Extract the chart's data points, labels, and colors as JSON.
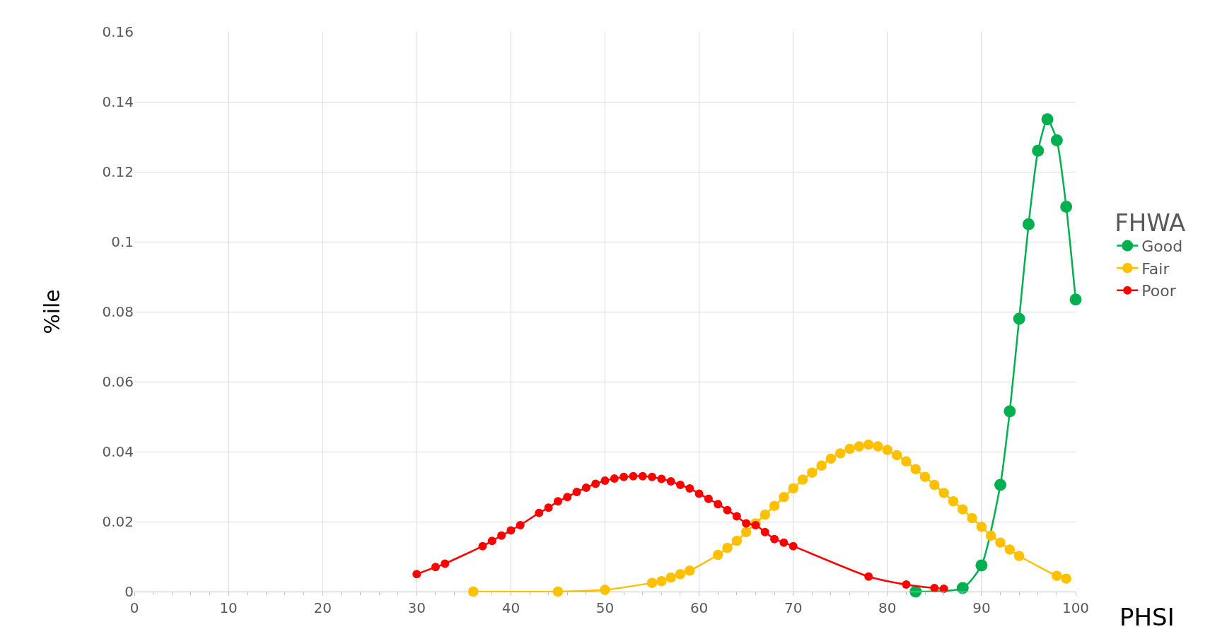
{
  "chart_data": {
    "type": "line",
    "xlabel": "PHSI",
    "ylabel": "%ile",
    "legend_title": "FHWA",
    "legend": "right",
    "grid": true,
    "marker": "circle",
    "line_style": "solid",
    "xlim": [
      0,
      100
    ],
    "xticks": [
      0,
      10,
      20,
      30,
      40,
      50,
      60,
      70,
      80,
      90,
      100
    ],
    "ylim": [
      0,
      0.16
    ],
    "yticks": [
      0,
      0.02,
      0.04,
      0.06,
      0.08,
      0.1,
      0.12,
      0.14,
      0.16
    ],
    "series": [
      {
        "name": "Good",
        "color": "#00b050",
        "x": [
          83,
          88,
          90,
          92,
          93,
          94,
          95,
          96,
          97,
          98,
          99,
          100
        ],
        "values": [
          0,
          0.001,
          0.0075,
          0.0305,
          0.0515,
          0.078,
          0.105,
          0.126,
          0.135,
          0.129,
          0.11,
          0.0835
        ]
      },
      {
        "name": "Fair",
        "color": "#ffc000",
        "x": [
          36,
          45,
          50,
          55,
          56,
          57,
          58,
          59,
          62,
          63,
          64,
          65,
          66,
          67,
          68,
          69,
          70,
          71,
          72,
          73,
          74,
          75,
          76,
          77,
          78,
          79,
          80,
          81,
          82,
          83,
          84,
          85,
          86,
          87,
          88,
          89,
          90,
          91,
          92,
          93,
          94,
          98,
          99
        ],
        "values": [
          0,
          0,
          0.0005,
          0.0025,
          0.003,
          0.004,
          0.005,
          0.006,
          0.0105,
          0.0125,
          0.0145,
          0.017,
          0.0195,
          0.022,
          0.0245,
          0.027,
          0.0295,
          0.032,
          0.034,
          0.036,
          0.038,
          0.0395,
          0.0408,
          0.0415,
          0.042,
          0.0415,
          0.0405,
          0.039,
          0.0372,
          0.035,
          0.0328,
          0.0305,
          0.0282,
          0.0258,
          0.0235,
          0.021,
          0.0185,
          0.016,
          0.014,
          0.012,
          0.0102,
          0.0045,
          0.0037
        ]
      },
      {
        "name": "Poor",
        "color": "#ff0000",
        "x": [
          30,
          32,
          33,
          37,
          38,
          39,
          40,
          41,
          43,
          44,
          45,
          46,
          47,
          48,
          49,
          50,
          51,
          52,
          53,
          54,
          55,
          56,
          57,
          58,
          59,
          60,
          61,
          62,
          63,
          64,
          65,
          66,
          67,
          68,
          69,
          70,
          78,
          82,
          85,
          86
        ],
        "values": [
          0.005,
          0.007,
          0.008,
          0.013,
          0.0145,
          0.016,
          0.0175,
          0.019,
          0.0225,
          0.024,
          0.0258,
          0.027,
          0.0285,
          0.0297,
          0.0308,
          0.0317,
          0.0323,
          0.0328,
          0.033,
          0.033,
          0.0328,
          0.0322,
          0.0315,
          0.0305,
          0.0295,
          0.028,
          0.0265,
          0.025,
          0.0233,
          0.0215,
          0.0195,
          0.019,
          0.017,
          0.015,
          0.014,
          0.013,
          0.0043,
          0.002,
          0.001,
          0.0008
        ]
      }
    ]
  }
}
